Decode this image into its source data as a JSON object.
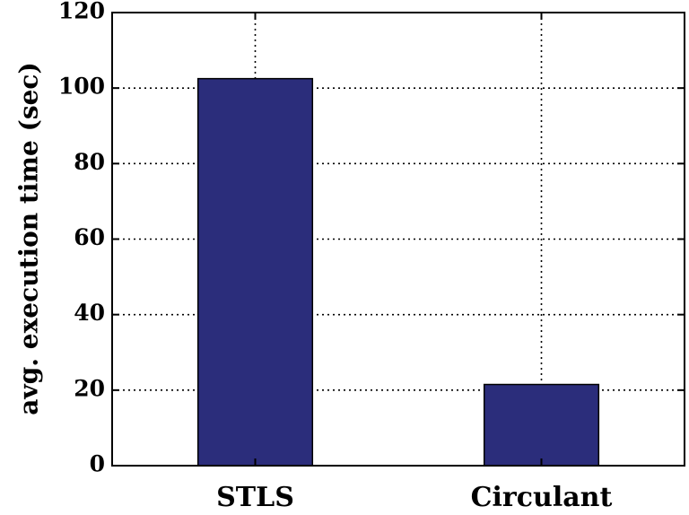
{
  "chart_data": {
    "type": "bar",
    "categories": [
      "STLS",
      "Circulant"
    ],
    "values": [
      102.5,
      21.5
    ],
    "title": "",
    "xlabel": "",
    "ylabel": "avg. execution time (sec)",
    "ylim": [
      0,
      120
    ],
    "yticks": [
      0,
      20,
      40,
      60,
      80,
      100,
      120
    ],
    "grid": true,
    "bar_color": "#2b2d7b"
  }
}
